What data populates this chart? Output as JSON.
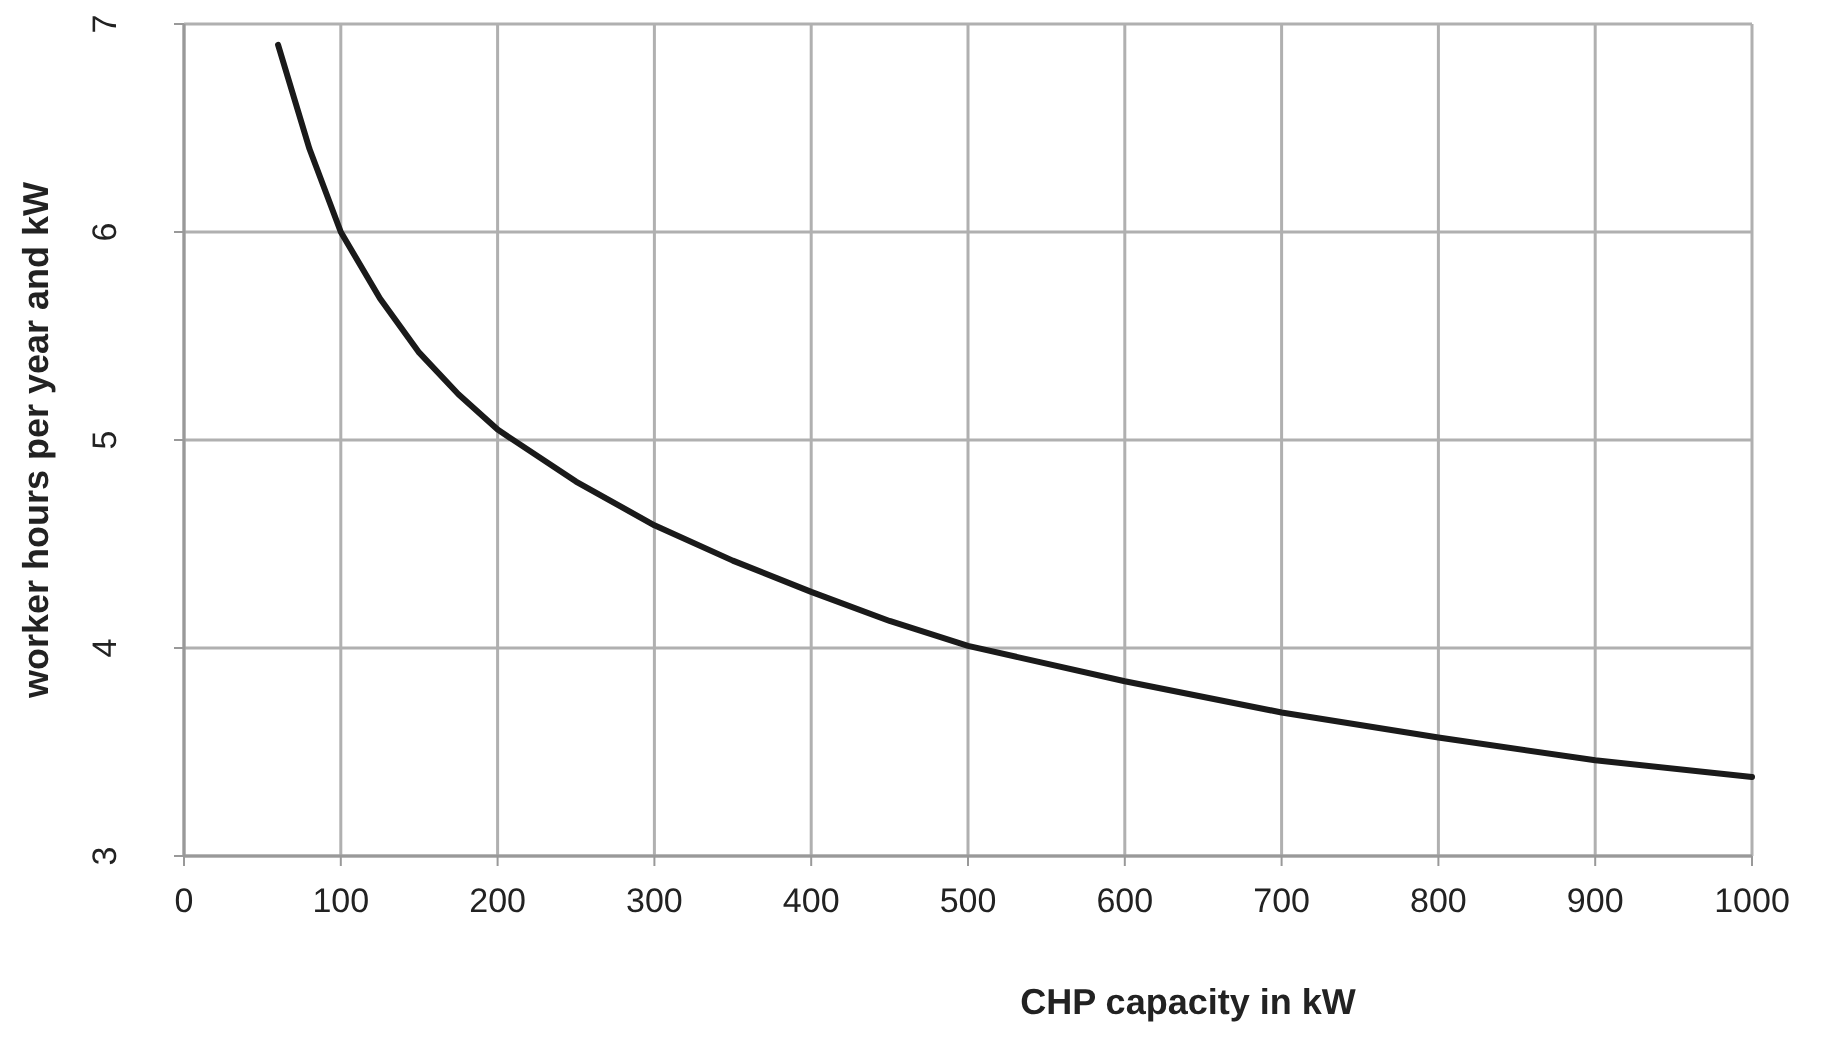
{
  "chart_data": {
    "type": "line",
    "xlabel": "CHP capacity in kW",
    "ylabel": "worker hours per year and kW",
    "x": [
      60,
      80,
      100,
      125,
      150,
      175,
      200,
      250,
      300,
      350,
      400,
      450,
      500,
      600,
      700,
      800,
      900,
      1000
    ],
    "series": [
      {
        "color": "#1a1a1a",
        "values": [
          6.9,
          6.4,
          6.0,
          5.68,
          5.42,
          5.22,
          5.05,
          4.8,
          4.59,
          4.42,
          4.27,
          4.13,
          4.01,
          3.84,
          3.69,
          3.57,
          3.46,
          3.38
        ]
      }
    ],
    "xlim": [
      0,
      1000
    ],
    "ylim": [
      3,
      7
    ],
    "xticks": [
      0,
      100,
      200,
      300,
      400,
      500,
      600,
      700,
      800,
      900,
      1000
    ],
    "yticks": [
      3,
      4,
      5,
      6,
      7
    ],
    "grid": true,
    "marker": "none",
    "line_style": "solid"
  }
}
